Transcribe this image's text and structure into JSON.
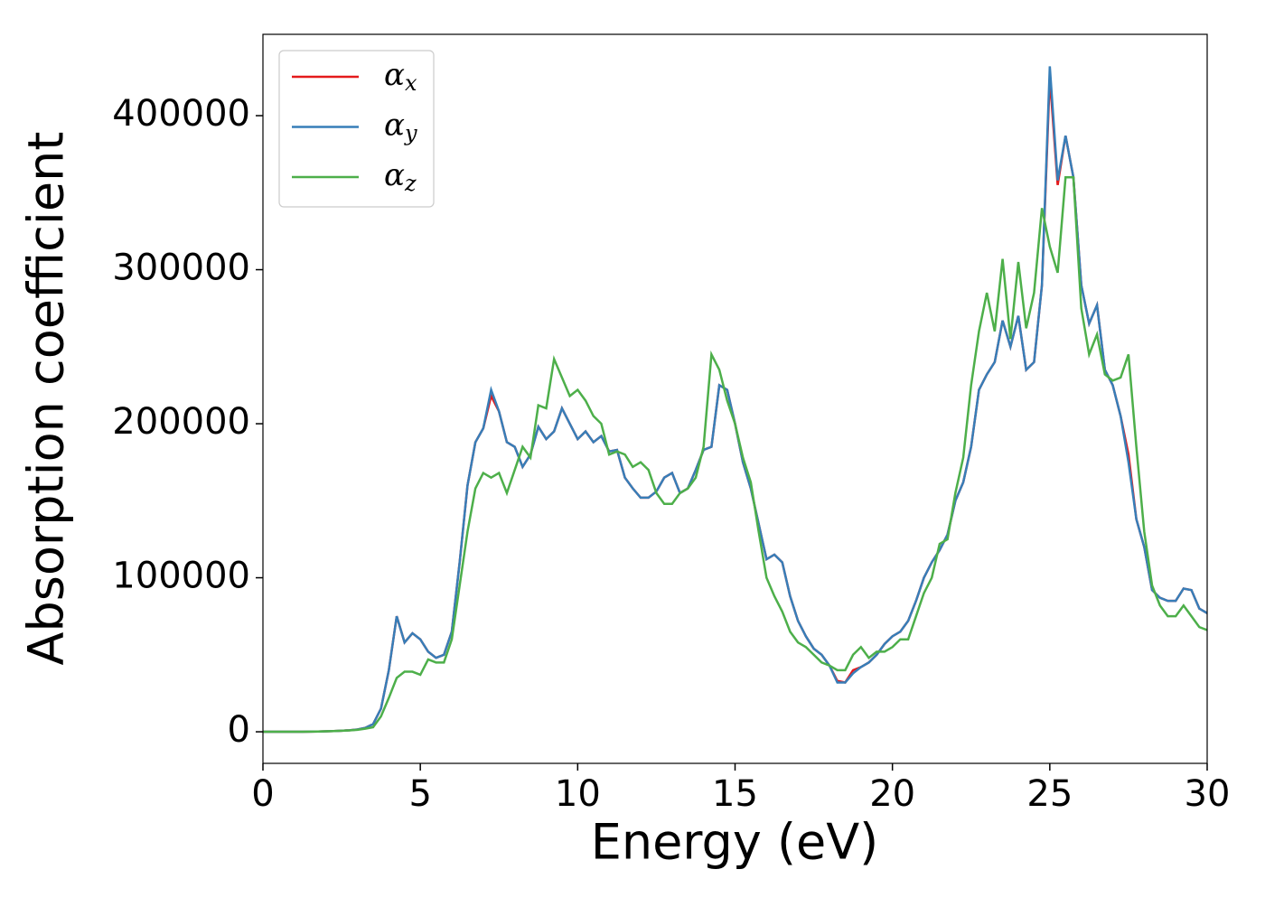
{
  "chart_data": {
    "type": "line",
    "x_label": "Energy (eV)",
    "y_label": "Absorption coefficient",
    "x": [
      0,
      0.25,
      0.5,
      0.75,
      1,
      1.25,
      1.5,
      1.75,
      2,
      2.25,
      2.5,
      2.75,
      3,
      3.25,
      3.5,
      3.75,
      4,
      4.25,
      4.5,
      4.75,
      5,
      5.25,
      5.5,
      5.75,
      6,
      6.25,
      6.5,
      6.75,
      7,
      7.25,
      7.5,
      7.75,
      8,
      8.25,
      8.5,
      8.75,
      9,
      9.25,
      9.5,
      9.75,
      10,
      10.25,
      10.5,
      10.75,
      11,
      11.25,
      11.5,
      11.75,
      12,
      12.25,
      12.5,
      12.75,
      13,
      13.25,
      13.5,
      13.75,
      14,
      14.25,
      14.5,
      14.75,
      15,
      15.25,
      15.5,
      15.75,
      16,
      16.25,
      16.5,
      16.75,
      17,
      17.25,
      17.5,
      17.75,
      18,
      18.25,
      18.5,
      18.75,
      19,
      19.25,
      19.5,
      19.75,
      20,
      20.25,
      20.5,
      20.75,
      21,
      21.25,
      21.5,
      21.75,
      22,
      22.25,
      22.5,
      22.75,
      23,
      23.25,
      23.5,
      23.75,
      24,
      24.25,
      24.5,
      24.75,
      25,
      25.25,
      25.5,
      25.75,
      26,
      26.25,
      26.5,
      26.75,
      27,
      27.25,
      27.5,
      27.75,
      28,
      28.25,
      28.5,
      28.75,
      29,
      29.25,
      29.5,
      29.75,
      30
    ],
    "series": [
      {
        "name": "αx",
        "color": "#e41a1c",
        "values": [
          0,
          0,
          0,
          0,
          0,
          0,
          100,
          200,
          300,
          500,
          700,
          1000,
          1500,
          2500,
          5000,
          15000,
          40000,
          75000,
          58000,
          64000,
          60000,
          52000,
          48000,
          50000,
          65000,
          110000,
          160000,
          188000,
          197000,
          218000,
          208000,
          188000,
          185000,
          172000,
          180000,
          198000,
          190000,
          195000,
          210000,
          200000,
          190000,
          195000,
          188000,
          192000,
          182000,
          183000,
          165000,
          158000,
          152000,
          152000,
          156000,
          165000,
          168000,
          155000,
          158000,
          170000,
          183000,
          185000,
          225000,
          222000,
          200000,
          175000,
          158000,
          135000,
          112000,
          115000,
          110000,
          88000,
          72000,
          62000,
          54000,
          50000,
          43000,
          33000,
          32000,
          40000,
          42000,
          45000,
          50000,
          57000,
          62000,
          65000,
          72000,
          85000,
          100000,
          110000,
          118000,
          128000,
          150000,
          162000,
          185000,
          222000,
          232000,
          240000,
          267000,
          250000,
          270000,
          235000,
          240000,
          290000,
          425000,
          355000,
          387000,
          360000,
          290000,
          265000,
          277000,
          235000,
          225000,
          205000,
          180000,
          138000,
          120000,
          92000,
          87000,
          85000,
          85000,
          93000,
          92000,
          80000,
          77000
        ]
      },
      {
        "name": "αy",
        "color": "#377eb8",
        "values": [
          0,
          0,
          0,
          0,
          0,
          0,
          100,
          200,
          300,
          500,
          700,
          1000,
          1500,
          2500,
          5000,
          15000,
          40000,
          75000,
          58000,
          64000,
          60000,
          52000,
          48000,
          50000,
          65000,
          110000,
          160000,
          188000,
          197000,
          222000,
          208000,
          188000,
          185000,
          172000,
          180000,
          198000,
          190000,
          195000,
          210000,
          200000,
          190000,
          195000,
          188000,
          192000,
          182000,
          183000,
          165000,
          158000,
          152000,
          152000,
          156000,
          165000,
          168000,
          155000,
          158000,
          170000,
          183000,
          185000,
          225000,
          222000,
          200000,
          175000,
          158000,
          135000,
          112000,
          115000,
          110000,
          88000,
          72000,
          62000,
          54000,
          50000,
          43000,
          32000,
          32000,
          38000,
          42000,
          45000,
          50000,
          57000,
          62000,
          65000,
          72000,
          85000,
          100000,
          110000,
          118000,
          128000,
          150000,
          162000,
          185000,
          222000,
          232000,
          240000,
          267000,
          250000,
          270000,
          235000,
          240000,
          290000,
          432000,
          358000,
          387000,
          360000,
          290000,
          265000,
          277000,
          235000,
          225000,
          205000,
          175000,
          138000,
          120000,
          92000,
          87000,
          85000,
          85000,
          93000,
          92000,
          80000,
          77000
        ]
      },
      {
        "name": "αz",
        "color": "#4daf4a",
        "values": [
          0,
          0,
          0,
          0,
          0,
          0,
          100,
          200,
          300,
          500,
          700,
          900,
          1300,
          2000,
          3000,
          10000,
          22000,
          35000,
          39000,
          39000,
          37000,
          47000,
          45000,
          45000,
          60000,
          95000,
          130000,
          158000,
          168000,
          165000,
          168000,
          155000,
          170000,
          185000,
          178000,
          212000,
          210000,
          242000,
          230000,
          218000,
          222000,
          215000,
          205000,
          200000,
          180000,
          182000,
          180000,
          172000,
          175000,
          170000,
          155000,
          148000,
          148000,
          155000,
          158000,
          165000,
          185000,
          245000,
          235000,
          215000,
          200000,
          178000,
          162000,
          130000,
          100000,
          88000,
          78000,
          65000,
          58000,
          55000,
          50000,
          45000,
          43000,
          40000,
          40000,
          50000,
          55000,
          48000,
          52000,
          52000,
          55000,
          60000,
          60000,
          75000,
          90000,
          100000,
          122000,
          125000,
          155000,
          178000,
          225000,
          260000,
          285000,
          260000,
          307000,
          255000,
          305000,
          262000,
          285000,
          340000,
          315000,
          298000,
          360000,
          360000,
          275000,
          245000,
          258000,
          232000,
          228000,
          230000,
          245000,
          185000,
          130000,
          95000,
          82000,
          75000,
          75000,
          82000,
          75000,
          68000,
          66000
        ]
      }
    ],
    "xlim": [
      0,
      30
    ],
    "xticks": [
      0,
      5,
      10,
      15,
      20,
      25,
      30
    ],
    "ylim": [
      -20500,
      452800
    ],
    "yticks": [
      0,
      100000,
      200000,
      300000,
      400000
    ],
    "legend": "upper left"
  }
}
